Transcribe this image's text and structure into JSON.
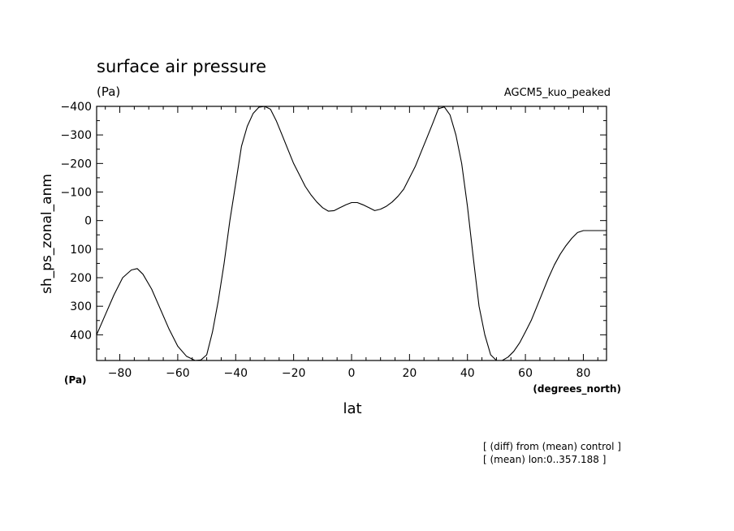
{
  "chart_data": {
    "type": "line",
    "title": "surface air pressure",
    "units_label": "(Pa)",
    "dataset_label": "AGCM5_kuo_peaked",
    "xlabel": "lat",
    "x_units": "(degrees_north)",
    "ylabel": "sh_ps_zonal_anm",
    "y_units": "(Pa)",
    "xlim": [
      -88,
      88
    ],
    "ylim": [
      490,
      -400
    ],
    "y_inverted": true,
    "x_ticks": [
      -80,
      -60,
      -40,
      -20,
      0,
      20,
      40,
      60,
      80
    ],
    "x_tick_labels": [
      "−80",
      "−60",
      "−40",
      "−20",
      "0",
      "20",
      "40",
      "60",
      "80"
    ],
    "y_ticks": [
      -400,
      -300,
      -200,
      -100,
      0,
      100,
      200,
      300,
      400
    ],
    "y_tick_labels": [
      "−400",
      "−300",
      "−200",
      "−100",
      "0",
      "100",
      "200",
      "300",
      "400"
    ],
    "grid": false,
    "line_color": "#000000",
    "series": [
      {
        "x": [
          -88,
          -85,
          -82,
          -79,
          -76,
          -74,
          -72,
          -69,
          -66,
          -63,
          -60,
          -57,
          -54,
          -52,
          -50,
          -48,
          -46,
          -44,
          -42,
          -40,
          -38,
          -36,
          -34,
          -32,
          -30,
          -28,
          -26,
          -24,
          -22,
          -20,
          -18,
          -16,
          -14,
          -12,
          -10,
          -8,
          -6,
          -4,
          -2,
          0,
          2,
          4,
          6,
          8,
          10,
          12,
          14,
          16,
          18,
          20,
          22,
          24,
          26,
          28,
          30,
          32,
          34,
          36,
          38,
          40,
          42,
          44,
          46,
          48,
          50,
          52,
          54,
          56,
          58,
          60,
          62,
          64,
          66,
          68,
          70,
          72,
          74,
          76,
          78,
          80,
          83,
          86,
          88
        ],
        "y": [
          400,
          330,
          260,
          200,
          173,
          168,
          188,
          240,
          310,
          380,
          440,
          475,
          490,
          488,
          470,
          390,
          280,
          150,
          0,
          -130,
          -260,
          -330,
          -375,
          -397,
          -400,
          -390,
          -350,
          -300,
          -250,
          -200,
          -160,
          -120,
          -90,
          -65,
          -45,
          -33,
          -35,
          -45,
          -55,
          -63,
          -63,
          -55,
          -45,
          -35,
          -40,
          -50,
          -65,
          -85,
          -110,
          -150,
          -190,
          -240,
          -290,
          -340,
          -392,
          -398,
          -370,
          -300,
          -200,
          -50,
          130,
          300,
          400,
          470,
          490,
          490,
          478,
          458,
          428,
          390,
          350,
          300,
          250,
          200,
          155,
          118,
          88,
          62,
          42,
          35,
          35,
          35,
          35
        ]
      }
    ]
  }
}
